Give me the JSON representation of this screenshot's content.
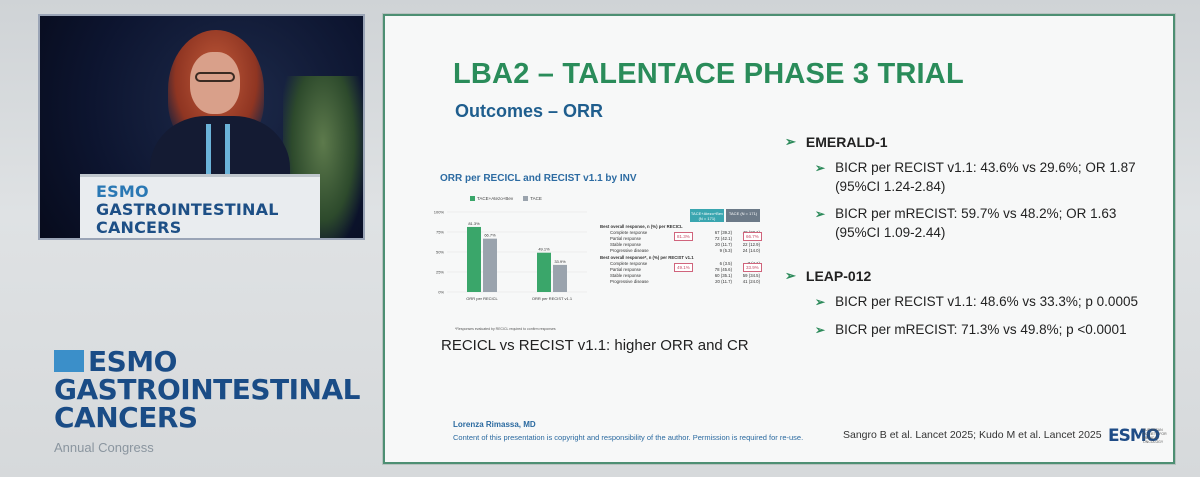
{
  "podium": {
    "line1_lead": "ESMO",
    "line1_rest": " GASTROINTESTINAL",
    "line2": "CANCERS"
  },
  "brand": {
    "line1": "ESMO",
    "line2": "GASTROINTESTINAL",
    "line3": "CANCERS",
    "sub": "Annual Congress"
  },
  "slide": {
    "title": "LBA2 – TALENTACE PHASE 3 TRIAL",
    "subtitle": "Outcomes – ORR",
    "chart_caption": "RECICL vs RECIST v1.1: higher ORR and CR",
    "author": "Lorenza Rimassa, MD",
    "copyright": "Content of this presentation is copyright and responsibility of the author. Permission is required for re-use.",
    "refs": "Sangro B et al. Lancet 2025; Kudo M et al. Lancet 2025",
    "logo": "ESMO",
    "logo_sub": "EUROPEAN SOCIETY FOR MEDICAL ONCOLOGY"
  },
  "right": {
    "emerald": {
      "head": "EMERALD-1",
      "items": [
        "BICR per RECIST v1.1: 43.6% vs 29.6%; OR 1.87 (95%CI 1.24-2.84)",
        "BICR per mRECIST: 59.7% vs 48.2%; OR 1.63 (95%CI 1.09-2.44)"
      ]
    },
    "leap": {
      "head": "LEAP-012",
      "items": [
        "BICR per RECIST v1.1: 48.6% vs 33.3%; p 0.0005",
        "BICR per mRECIST: 71.3% vs 49.8%; p <0.0001"
      ]
    }
  },
  "colors": {
    "accent_green": "#2a8c5a",
    "accent_blue": "#1f5e8e",
    "tace_atezo": "#3aa66a",
    "tace": "#9aa3ad"
  },
  "chart_data": {
    "type": "bar",
    "title": "ORR per RECICL and RECIST v1.1 by INV",
    "categories": [
      "ORR per RECICL",
      "ORR per RECIST v1.1"
    ],
    "series": [
      {
        "name": "TACE+Atezo+Bev",
        "values": [
          81.3,
          49.1
        ]
      },
      {
        "name": "TACE",
        "values": [
          66.7,
          33.9
        ]
      }
    ],
    "value_labels": [
      [
        "81.3%",
        "49.1%"
      ],
      [
        "66.7%",
        "33.9%"
      ]
    ],
    "yticks": [
      "100%",
      "75%",
      "50%",
      "25%",
      "0%"
    ],
    "ylim": [
      0,
      100
    ],
    "footnote": "*Responses evaluated by RECICL required to confirm responses",
    "table": {
      "headers": [
        "TACE+Atezo+Bev (N = 171)",
        "TACE (N = 171)"
      ],
      "sections": [
        {
          "label": "Best overall response, n (%) per RECICL",
          "badge_a": "81.3%",
          "badge_b": "66.7%",
          "rows": [
            {
              "label": "Complete response",
              "a": "67 (39.2)",
              "b": "48 (28.1)"
            },
            {
              "label": "Partial response",
              "a": "72 (42.1)",
              "b": "66 (38.6)"
            },
            {
              "label": "Stable response",
              "a": "20 (11.7)",
              "b": "22 (12.9)"
            },
            {
              "label": "Progressive disease",
              "a": "9 (5.3)",
              "b": "24 (14.0)"
            }
          ]
        },
        {
          "label": "Best overall response*, n (%) per RECIST v1.1",
          "badge_a": "49.1%",
          "badge_b": "33.9%",
          "rows": [
            {
              "label": "Complete response",
              "a": "6 (3.5)",
              "b": "7 (4.1)"
            },
            {
              "label": "Partial response",
              "a": "78 (45.6)",
              "b": "51 (29.8)"
            },
            {
              "label": "Stable response",
              "a": "60 (35.1)",
              "b": "59 (34.5)"
            },
            {
              "label": "Progressive disease",
              "a": "20 (11.7)",
              "b": "41 (24.0)"
            }
          ]
        }
      ]
    }
  }
}
